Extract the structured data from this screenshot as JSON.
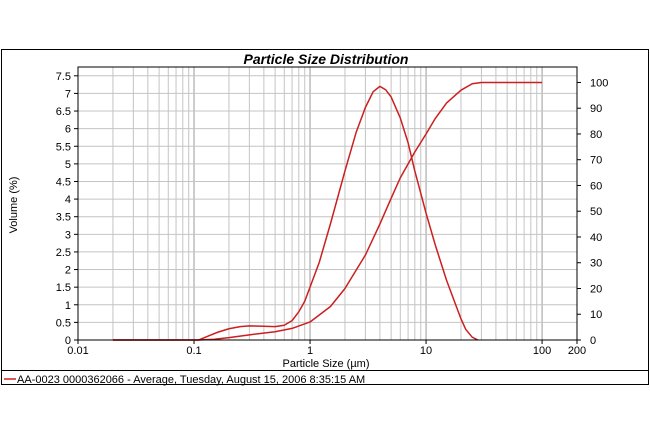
{
  "chart_data": {
    "type": "line",
    "title": "Particle Size Distribution",
    "xlabel": "Particle Size (µm)",
    "ylabel": "Volume (%)",
    "x_scale": "log",
    "xlim": [
      0.01,
      200
    ],
    "ylim": [
      0,
      7.75
    ],
    "y2lim": [
      0,
      106
    ],
    "grid": true,
    "x_ticks": [
      {
        "value": 0.01,
        "label": "0.01"
      },
      {
        "value": 0.1,
        "label": "0.1"
      },
      {
        "value": 1,
        "label": "1"
      },
      {
        "value": 10,
        "label": "10"
      },
      {
        "value": 100,
        "label": "100"
      },
      {
        "value": 200,
        "label": "200"
      }
    ],
    "y_ticks": [
      "0",
      "0.5",
      "1",
      "1.5",
      "2",
      "2.5",
      "3",
      "3.5",
      "4",
      "4.5",
      "5",
      "5.5",
      "6",
      "6.5",
      "7",
      "7.5"
    ],
    "y2_ticks": [
      "0",
      "10",
      "20",
      "30",
      "40",
      "50",
      "60",
      "70",
      "80",
      "90",
      "100"
    ],
    "series": [
      {
        "axis": "left",
        "color": "#cc1f1f",
        "points": [
          [
            0.02,
            0
          ],
          [
            0.11,
            0
          ],
          [
            0.13,
            0.1
          ],
          [
            0.16,
            0.22
          ],
          [
            0.2,
            0.32
          ],
          [
            0.25,
            0.38
          ],
          [
            0.3,
            0.4
          ],
          [
            0.4,
            0.39
          ],
          [
            0.5,
            0.38
          ],
          [
            0.6,
            0.42
          ],
          [
            0.7,
            0.55
          ],
          [
            0.8,
            0.8
          ],
          [
            0.9,
            1.1
          ],
          [
            1,
            1.5
          ],
          [
            1.2,
            2.2
          ],
          [
            1.5,
            3.3
          ],
          [
            2,
            4.8
          ],
          [
            2.5,
            5.9
          ],
          [
            3,
            6.6
          ],
          [
            3.5,
            7.05
          ],
          [
            4,
            7.2
          ],
          [
            4.5,
            7.1
          ],
          [
            5,
            6.9
          ],
          [
            6,
            6.3
          ],
          [
            7,
            5.6
          ],
          [
            8,
            4.8
          ],
          [
            10,
            3.6
          ],
          [
            12,
            2.7
          ],
          [
            15,
            1.7
          ],
          [
            18,
            1
          ],
          [
            20,
            0.6
          ],
          [
            22,
            0.3
          ],
          [
            25,
            0.08
          ],
          [
            28,
            0
          ]
        ]
      },
      {
        "axis": "right",
        "color": "#cc1f1f",
        "points": [
          [
            0.02,
            0
          ],
          [
            0.11,
            0
          ],
          [
            0.15,
            0.3
          ],
          [
            0.2,
            0.9
          ],
          [
            0.3,
            2
          ],
          [
            0.5,
            3.2
          ],
          [
            0.7,
            4.5
          ],
          [
            1,
            7
          ],
          [
            1.5,
            13
          ],
          [
            2,
            20
          ],
          [
            3,
            33
          ],
          [
            4,
            45
          ],
          [
            5,
            55
          ],
          [
            6,
            63
          ],
          [
            8,
            73
          ],
          [
            10,
            80
          ],
          [
            12,
            86
          ],
          [
            15,
            92
          ],
          [
            20,
            97
          ],
          [
            25,
            99.5
          ],
          [
            30,
            100
          ],
          [
            100,
            100
          ]
        ]
      }
    ],
    "legend": {
      "placement": "bottom",
      "entries": [
        "AA-0023 0000362066 - Average, Tuesday, August 15, 2006 8:35:15 AM"
      ]
    }
  }
}
